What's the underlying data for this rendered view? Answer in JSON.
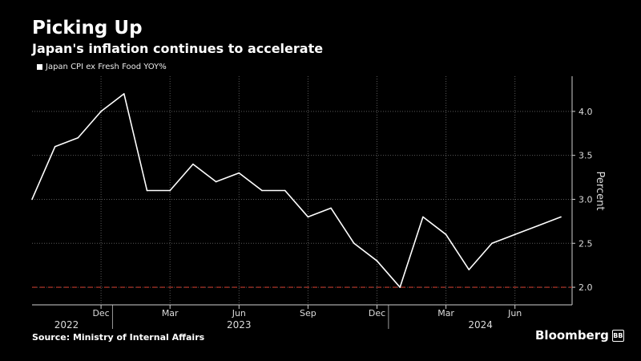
{
  "header": {
    "title": "Picking Up",
    "subtitle": "Japan's inflation continues to accelerate"
  },
  "footer": {
    "source": "Source: Ministry of Internal Affairs",
    "brand": "Bloomberg",
    "brand_mark": "BB"
  },
  "colors": {
    "background": "#000000",
    "line": "#ffffff",
    "target_line": "#c0392b",
    "grid": "#5a5a5a"
  },
  "chart_data": {
    "type": "line",
    "title": "Picking Up",
    "subtitle": "Japan's inflation continues to accelerate",
    "ylabel": "Percent",
    "ylim": [
      1.8,
      4.4
    ],
    "yticks": [
      2.0,
      2.5,
      3.0,
      3.5,
      4.0
    ],
    "ytick_labels": [
      "2.0",
      "2.5",
      "3.0",
      "3.5",
      "4.0"
    ],
    "grid": true,
    "legend_position": "top-left",
    "xtick_labels": [
      {
        "label": "Dec",
        "index": 3
      },
      {
        "label": "Mar",
        "index": 6
      },
      {
        "label": "Jun",
        "index": 9
      },
      {
        "label": "Sep",
        "index": 12
      },
      {
        "label": "Dec",
        "index": 15
      },
      {
        "label": "Mar",
        "index": 18
      },
      {
        "label": "Jun",
        "index": 21
      }
    ],
    "year_labels": [
      {
        "label": "2022",
        "index": 1.5
      },
      {
        "label": "2023",
        "index": 9
      },
      {
        "label": "2024",
        "index": 19.5
      }
    ],
    "reference_line": {
      "value": 2.0,
      "style": "dashed",
      "color": "#c0392b"
    },
    "series": [
      {
        "name": "Japan CPI ex Fresh Food YOY%",
        "color": "#ffffff",
        "x": [
          "2022-09",
          "2022-10",
          "2022-11",
          "2022-12",
          "2023-01",
          "2023-02",
          "2023-03",
          "2023-04",
          "2023-05",
          "2023-06",
          "2023-07",
          "2023-08",
          "2023-09",
          "2023-10",
          "2023-11",
          "2023-12",
          "2024-01",
          "2024-02",
          "2024-03",
          "2024-04",
          "2024-05",
          "2024-06",
          "2024-07",
          "2024-08"
        ],
        "values": [
          3.0,
          3.6,
          3.7,
          4.0,
          4.2,
          3.1,
          3.1,
          3.4,
          3.2,
          3.3,
          3.1,
          3.1,
          2.8,
          2.9,
          2.5,
          2.3,
          2.0,
          2.8,
          2.6,
          2.2,
          2.5,
          2.6,
          2.7,
          2.8
        ]
      }
    ]
  }
}
